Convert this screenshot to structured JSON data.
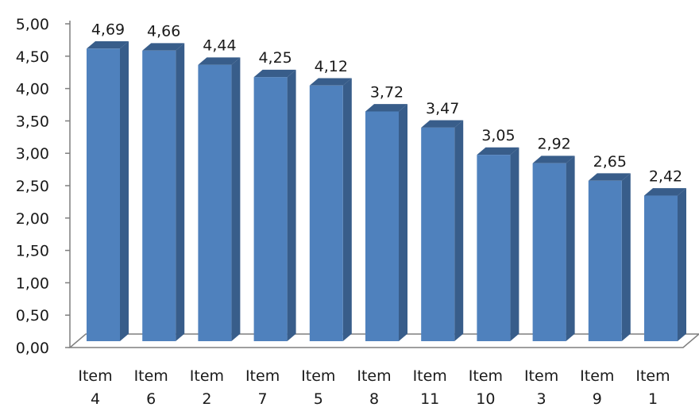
{
  "chart_data": {
    "type": "bar",
    "style": "3d-column",
    "categories": [
      [
        "Item",
        "4"
      ],
      [
        "Item",
        "6"
      ],
      [
        "Item",
        "2"
      ],
      [
        "Item",
        "7"
      ],
      [
        "Item",
        "5"
      ],
      [
        "Item",
        "8"
      ],
      [
        "Item",
        "11"
      ],
      [
        "Item",
        "10"
      ],
      [
        "Item",
        "3"
      ],
      [
        "Item",
        "9"
      ],
      [
        "Item",
        "1"
      ]
    ],
    "values": [
      4.69,
      4.66,
      4.44,
      4.25,
      4.12,
      3.72,
      3.47,
      3.05,
      2.92,
      2.65,
      2.42
    ],
    "data_labels": [
      "4,69",
      "4,66",
      "4,44",
      "4,25",
      "4,12",
      "3,72",
      "3,47",
      "3,05",
      "2,92",
      "2,65",
      "2,42"
    ],
    "y_ticks": [
      "0,00",
      "0,50",
      "1,00",
      "1,50",
      "2,00",
      "2,50",
      "3,00",
      "3,50",
      "4,00",
      "4,50",
      "5,00"
    ],
    "ylim": [
      0,
      5
    ],
    "grid": false,
    "legend": "none",
    "colors": {
      "bar_front": "#4f81bd",
      "bar_side": "#385d8a",
      "bar_top": "#5a8ac6",
      "floor": "#ffffff",
      "floor_stroke": "#7f7f7f"
    }
  }
}
